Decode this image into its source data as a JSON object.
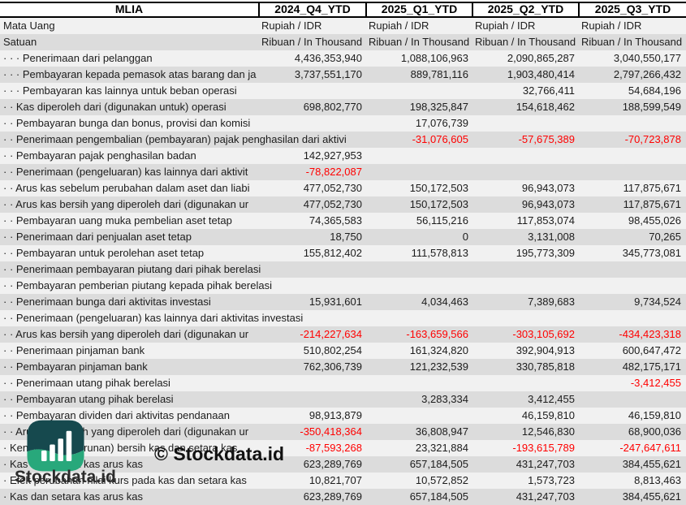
{
  "table": {
    "ticker": "MLIA",
    "periods": [
      "2024_Q4_YTD",
      "2025_Q1_YTD",
      "2025_Q2_YTD",
      "2025_Q3_YTD"
    ],
    "currency_row": {
      "label": "Mata Uang",
      "values": [
        "Rupiah / IDR",
        "Rupiah / IDR",
        "Rupiah / IDR",
        "Rupiah / IDR"
      ]
    },
    "unit_row": {
      "label": "Satuan",
      "values": [
        "Ribuan / In Thousand",
        "Ribuan / In Thousand",
        "Ribuan / In Thousand",
        "Ribuan / In Thousand"
      ]
    },
    "rows": [
      {
        "label": "· · · Penerimaan dari pelanggan",
        "values": [
          "4,436,353,940",
          "1,088,106,963",
          "2,090,865,287",
          "3,040,550,177"
        ]
      },
      {
        "label": "· · · Pembayaran kepada pemasok atas barang dan ja",
        "values": [
          "3,737,551,170",
          "889,781,116",
          "1,903,480,414",
          "2,797,266,432"
        ]
      },
      {
        "label": "· · · Pembayaran kas lainnya untuk beban operasi",
        "values": [
          "",
          "",
          "32,766,411",
          "54,684,196"
        ]
      },
      {
        "label": "· · Kas diperoleh dari (digunakan untuk) operasi",
        "values": [
          "698,802,770",
          "198,325,847",
          "154,618,462",
          "188,599,549"
        ]
      },
      {
        "label": "· · Pembayaran bunga dan bonus, provisi dan komisi",
        "values": [
          "",
          "17,076,739",
          "",
          ""
        ]
      },
      {
        "label": "· · Penerimaan pengembalian (pembayaran) pajak penghasilan dari aktivi",
        "values": [
          "",
          "-31,076,605",
          "-57,675,389",
          "-70,723,878"
        ]
      },
      {
        "label": "· · Pembayaran pajak penghasilan badan",
        "values": [
          "142,927,953",
          "",
          "",
          ""
        ]
      },
      {
        "label": "· · Penerimaan (pengeluaran) kas lainnya dari aktivit",
        "values": [
          "-78,822,087",
          "",
          "",
          ""
        ]
      },
      {
        "label": "· · Arus kas sebelum perubahan dalam aset dan liabi",
        "values": [
          "477,052,730",
          "150,172,503",
          "96,943,073",
          "117,875,671"
        ]
      },
      {
        "label": "· · Arus kas bersih yang diperoleh dari (digunakan ur",
        "values": [
          "477,052,730",
          "150,172,503",
          "96,943,073",
          "117,875,671"
        ]
      },
      {
        "label": "· · Pembayaran uang muka pembelian aset tetap",
        "values": [
          "74,365,583",
          "56,115,216",
          "117,853,074",
          "98,455,026"
        ]
      },
      {
        "label": "· · Penerimaan dari penjualan aset tetap",
        "values": [
          "18,750",
          "0",
          "3,131,008",
          "70,265"
        ]
      },
      {
        "label": "· · Pembayaran untuk perolehan aset tetap",
        "values": [
          "155,812,402",
          "111,578,813",
          "195,773,309",
          "345,773,081"
        ]
      },
      {
        "label": "· · Penerimaan pembayaran piutang dari pihak berelasi",
        "values": [
          "",
          "",
          "",
          ""
        ]
      },
      {
        "label": "· · Pembayaran pemberian piutang kepada pihak berelasi",
        "values": [
          "",
          "",
          "",
          ""
        ]
      },
      {
        "label": "· · Penerimaan bunga dari aktivitas investasi",
        "values": [
          "15,931,601",
          "4,034,463",
          "7,389,683",
          "9,734,524"
        ]
      },
      {
        "label": "· · Penerimaan (pengeluaran) kas lainnya dari aktivitas investasi",
        "values": [
          "",
          "",
          "",
          ""
        ]
      },
      {
        "label": "· · Arus kas bersih yang diperoleh dari (digunakan ur",
        "values": [
          "-214,227,634",
          "-163,659,566",
          "-303,105,692",
          "-434,423,318"
        ]
      },
      {
        "label": "· · Penerimaan pinjaman bank",
        "values": [
          "510,802,254",
          "161,324,820",
          "392,904,913",
          "600,647,472"
        ]
      },
      {
        "label": "· · Pembayaran pinjaman bank",
        "values": [
          "762,306,739",
          "121,232,539",
          "330,785,818",
          "482,175,171"
        ]
      },
      {
        "label": "· · Penerimaan utang pihak berelasi",
        "values": [
          "",
          "",
          "",
          "-3,412,455"
        ]
      },
      {
        "label": "· · Pembayaran utang pihak berelasi",
        "values": [
          "",
          "3,283,334",
          "3,412,455",
          ""
        ]
      },
      {
        "label": "· · Pembayaran dividen dari aktivitas pendanaan",
        "values": [
          "98,913,879",
          "",
          "46,159,810",
          "46,159,810"
        ]
      },
      {
        "label": "· · Arus kas bersih yang diperoleh dari (digunakan ur",
        "values": [
          "-350,418,364",
          "36,808,947",
          "12,546,830",
          "68,900,036"
        ]
      },
      {
        "label": "· Kenaikan (penurunan) bersih kas dan setara kas",
        "values": [
          "-87,593,268",
          "23,321,884",
          "-193,615,789",
          "-247,647,611"
        ]
      },
      {
        "label": "· Kas dan setara kas arus kas",
        "values": [
          "623,289,769",
          "657,184,505",
          "431,247,703",
          "384,455,621"
        ]
      },
      {
        "label": "· Efek perubahan nilai kurs pada kas dan setara kas",
        "values": [
          "10,821,707",
          "10,572,852",
          "1,573,723",
          "8,813,463"
        ]
      },
      {
        "label": "· Kas dan setara kas arus kas",
        "values": [
          "623,289,769",
          "657,184,505",
          "431,247,703",
          "384,455,621"
        ]
      }
    ]
  },
  "watermark": {
    "logo_text": "Stockdata.id",
    "copyright": "© Stockdata.id"
  },
  "colors": {
    "negative": "#ff0000",
    "stripe_light": "#f1f1f1",
    "stripe_dark": "#dcdcdc",
    "logo_teal": "#16494e",
    "logo_green": "#28a87b"
  }
}
